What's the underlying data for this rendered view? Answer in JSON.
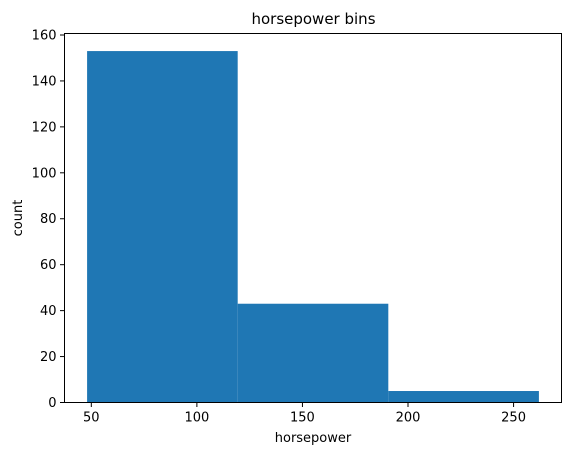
{
  "chart_data": {
    "type": "bar",
    "title": "horsepower bins",
    "xlabel": "horsepower",
    "ylabel": "count",
    "bins": [
      {
        "x0": 48,
        "x1": 119.33,
        "count": 153
      },
      {
        "x0": 119.33,
        "x1": 190.67,
        "count": 43
      },
      {
        "x0": 190.67,
        "x1": 262,
        "count": 5
      }
    ],
    "xlim": [
      37.3,
      272.7
    ],
    "ylim": [
      0,
      160.65
    ],
    "xticks": [
      50,
      100,
      150,
      200,
      250
    ],
    "yticks": [
      0,
      20,
      40,
      60,
      80,
      100,
      120,
      140,
      160
    ],
    "bar_color": "#1f77b4",
    "grid": false,
    "legend": "none"
  }
}
